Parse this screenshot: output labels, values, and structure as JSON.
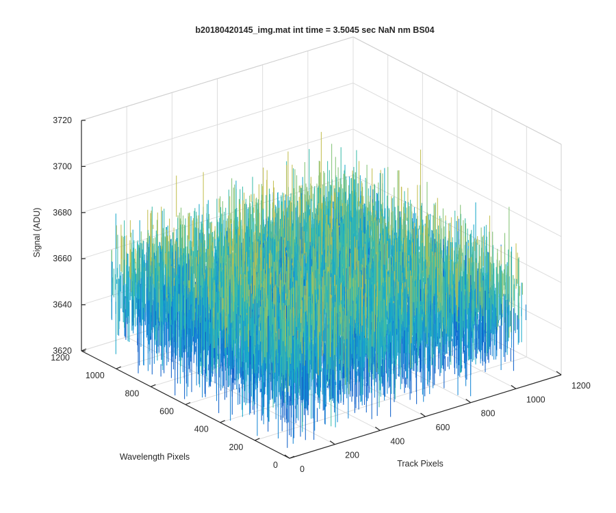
{
  "chart_data": {
    "type": "surface",
    "title": "b20180420145_img.mat int time = 3.5045 sec  NaN nm BS04",
    "xlabel": "Track Pixels",
    "ylabel": "Wavelength Pixels",
    "zlabel": "Signal (ADU)",
    "xlim": [
      0,
      1200
    ],
    "ylim": [
      0,
      1200
    ],
    "zlim": [
      3620,
      3720
    ],
    "xticks": [
      0,
      200,
      400,
      600,
      800,
      1000,
      1200
    ],
    "yticks": [
      0,
      200,
      400,
      600,
      800,
      1000,
      1200
    ],
    "zticks": [
      3620,
      3640,
      3660,
      3680,
      3700,
      3720
    ],
    "xtick_labels": [
      "0",
      "200",
      "400",
      "600",
      "800",
      "1000",
      "1200"
    ],
    "ytick_labels": [
      "0",
      "200",
      "400",
      "600",
      "800",
      "1000",
      "1200"
    ],
    "ztick_labels": [
      "3620",
      "3640",
      "3660",
      "3680",
      "3700",
      "3720"
    ],
    "data_extent": {
      "x": [
        0,
        1024
      ],
      "y": [
        0,
        1024
      ]
    },
    "signal_mean": 3655,
    "signal_spread": 10,
    "grid": true,
    "box": "3d",
    "colormap": "parula",
    "colors": [
      "#0c5fc9",
      "#1586d6",
      "#18a8c9",
      "#3bbcaa",
      "#82c274",
      "#c2be4e"
    ]
  }
}
